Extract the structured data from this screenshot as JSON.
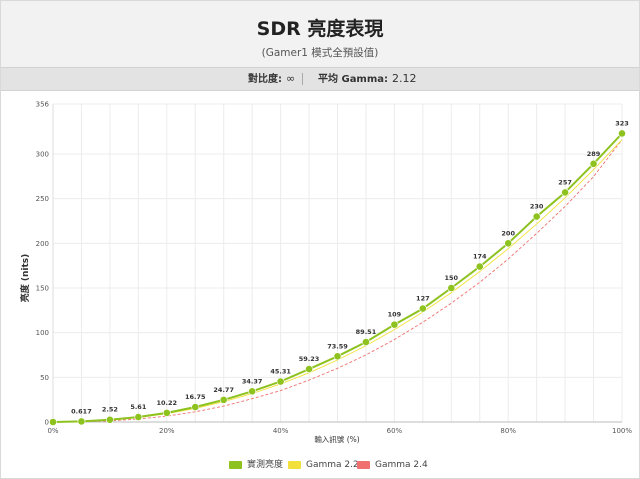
{
  "header": {
    "title": "SDR 亮度表現",
    "subtitle": "(Gamer1 模式全預設值)"
  },
  "info": {
    "contrast_label": "對比度:",
    "contrast_value": "∞",
    "gamma_label": "平均 Gamma:",
    "gamma_value": "2.12"
  },
  "colors": {
    "measured": "#8dc21f",
    "gamma22": "#f2e03c",
    "gamma24": "#f07070",
    "grid": "#ececec"
  },
  "chart_data": {
    "type": "line",
    "xlabel": "輸入訊號 (%)",
    "ylabel": "亮度 (nits)",
    "x": [
      0,
      5,
      10,
      15,
      20,
      25,
      30,
      35,
      40,
      45,
      50,
      55,
      60,
      65,
      70,
      75,
      80,
      85,
      90,
      95,
      100
    ],
    "xlim": [
      0,
      100
    ],
    "ylim": [
      0,
      356
    ],
    "x_ticks": [
      {
        "value": 0,
        "label": "0%"
      },
      {
        "value": 20,
        "label": "20%"
      },
      {
        "value": 40,
        "label": "40%"
      },
      {
        "value": 60,
        "label": "60%"
      },
      {
        "value": 80,
        "label": "80%"
      },
      {
        "value": 100,
        "label": "100%"
      }
    ],
    "y_ticks": [
      {
        "value": 0,
        "label": "0"
      },
      {
        "value": 50,
        "label": "50"
      },
      {
        "value": 100,
        "label": "100"
      },
      {
        "value": 150,
        "label": "150"
      },
      {
        "value": 200,
        "label": "200"
      },
      {
        "value": 250,
        "label": "250"
      },
      {
        "value": 300,
        "label": "300"
      },
      {
        "value": 356,
        "label": "356"
      }
    ],
    "grid": true,
    "legend_position": "bottom",
    "series": [
      {
        "name": "實測亮度",
        "values": [
          0,
          0.617,
          2.52,
          5.61,
          10.22,
          16.75,
          24.77,
          34.37,
          45.31,
          59.23,
          73.59,
          89.51,
          109,
          127,
          150,
          174,
          200,
          230,
          257,
          289,
          323
        ],
        "labels": [
          "0",
          "0.617",
          "2.52",
          "5.61",
          "10.22",
          "16.75",
          "24.77",
          "34.37",
          "45.31",
          "59.23",
          "73.59",
          "89.51",
          "109",
          "127",
          "150",
          "174",
          "200",
          "230",
          "257",
          "289",
          "323"
        ]
      },
      {
        "name": "Gamma 2.2",
        "values": [
          0,
          0.45,
          2.04,
          4.95,
          9.3,
          15.2,
          22.7,
          31.8,
          42.6,
          55.1,
          69.4,
          85.5,
          103.4,
          123.2,
          144.9,
          168.5,
          194.0,
          221.5,
          251.0,
          282.5,
          316.0
        ]
      },
      {
        "name": "Gamma 2.4",
        "values": [
          0,
          0.24,
          1.26,
          3.4,
          6.6,
          11.4,
          17.8,
          26.1,
          35.2,
          46.9,
          60.1,
          75.1,
          92.4,
          111.7,
          133.0,
          156.4,
          182.5,
          211.1,
          241.4,
          274.6,
          316.0
        ]
      }
    ]
  }
}
